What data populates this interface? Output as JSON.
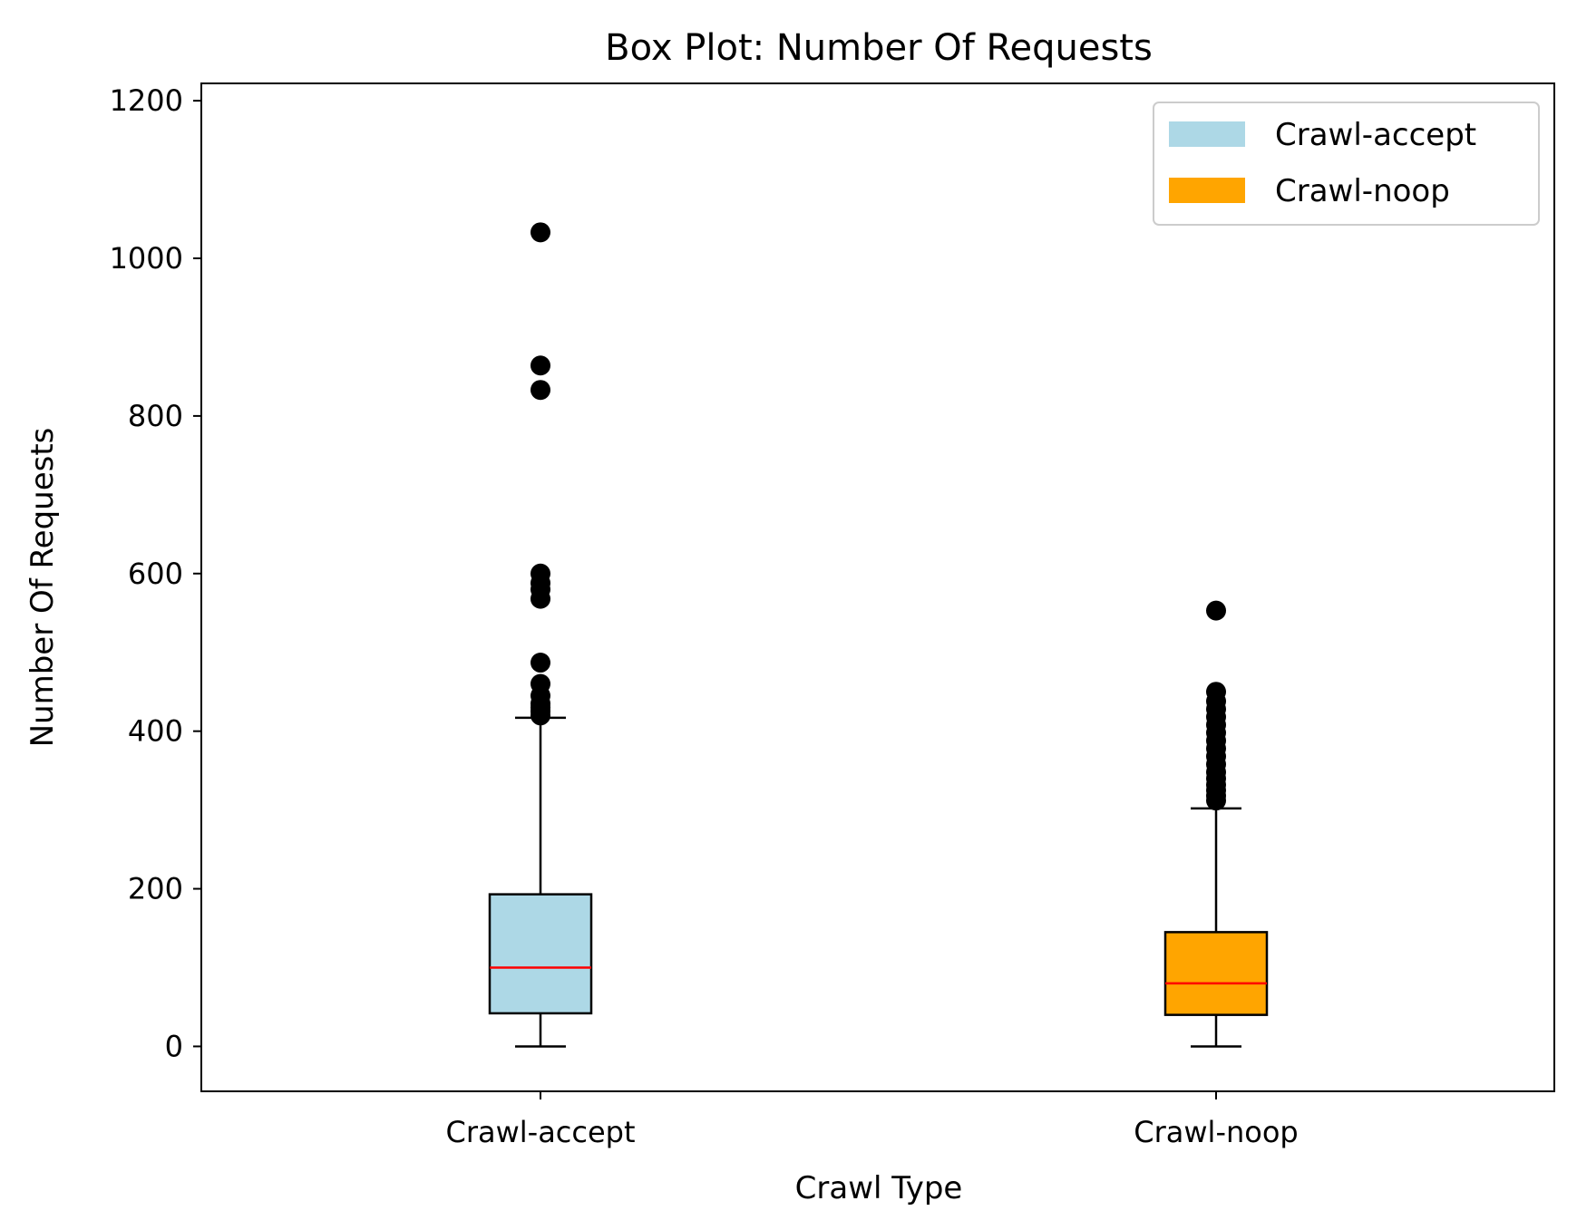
{
  "chart_data": {
    "type": "box",
    "title": "Box Plot: Number Of Requests",
    "xlabel": "Crawl Type",
    "ylabel": "Number Of Requests",
    "ylim": [
      -57,
      1222
    ],
    "yticks": [
      0,
      200,
      400,
      600,
      800,
      1000,
      1200
    ],
    "grid": false,
    "legend_position": "top-right",
    "categories": [
      "Crawl-accept",
      "Crawl-noop"
    ],
    "series": [
      {
        "name": "Crawl-accept",
        "color": "#add8e6",
        "whisker_low": 0,
        "q1": 42,
        "median": 100,
        "q3": 193,
        "whisker_high": 417,
        "outliers": [
          420,
          425,
          430,
          435,
          445,
          460,
          487,
          568,
          580,
          588,
          600,
          833,
          864,
          1033
        ]
      },
      {
        "name": "Crawl-noop",
        "color": "#ffa500",
        "whisker_low": 0,
        "q1": 40,
        "median": 80,
        "q3": 145,
        "whisker_high": 302,
        "outliers": [
          312,
          318,
          325,
          332,
          340,
          348,
          358,
          368,
          378,
          388,
          398,
          408,
          418,
          428,
          438,
          450,
          553
        ]
      }
    ],
    "median_color": "#ff0000"
  }
}
